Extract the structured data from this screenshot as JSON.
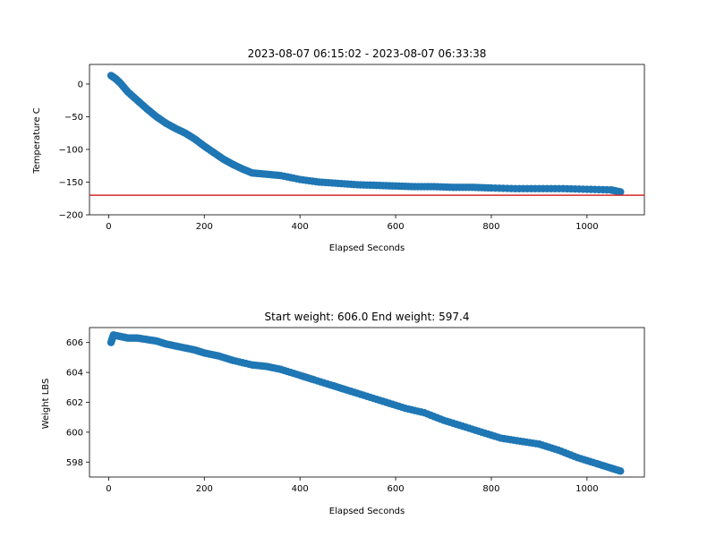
{
  "chart_data": [
    {
      "type": "scatter",
      "title": "2023-08-07 06:15:02 - 2023-08-07 06:33:38",
      "xlabel": "Elapsed Seconds",
      "ylabel": "Temperature C",
      "xlim": [
        -40,
        1120
      ],
      "ylim": [
        -200,
        30
      ],
      "xticks": [
        0,
        200,
        400,
        600,
        800,
        1000
      ],
      "yticks": [
        -200,
        -150,
        -100,
        -50,
        0
      ],
      "ytick_labels": [
        "−200",
        "−150",
        "−100",
        "−50",
        "0"
      ],
      "grid": false,
      "marker_color": "#1f77b4",
      "reference_line": {
        "y": -170,
        "color": "#d62728"
      },
      "series": [
        {
          "x": [
            5,
            15,
            25,
            40,
            60,
            80,
            100,
            120,
            140,
            160,
            180,
            200,
            220,
            240,
            260,
            280,
            300,
            330,
            360,
            400,
            440,
            480,
            520,
            560,
            600,
            640,
            680,
            720,
            760,
            800,
            850,
            900,
            950,
            1000,
            1050,
            1070
          ],
          "y": [
            13,
            8,
            1,
            -12,
            -25,
            -38,
            -50,
            -60,
            -68,
            -75,
            -84,
            -95,
            -105,
            -115,
            -123,
            -130,
            -136,
            -138,
            -140,
            -146,
            -150,
            -152,
            -154,
            -155,
            -156,
            -157,
            -157,
            -158,
            -158,
            -159,
            -160,
            -160,
            -160,
            -161,
            -162,
            -165
          ]
        }
      ]
    },
    {
      "type": "scatter",
      "title": "Start weight: 606.0 End weight: 597.4",
      "xlabel": "Elapsed Seconds",
      "ylabel": "Weight LBS",
      "xlim": [
        -40,
        1120
      ],
      "ylim": [
        597,
        607
      ],
      "xticks": [
        0,
        200,
        400,
        600,
        800,
        1000
      ],
      "yticks": [
        598,
        600,
        602,
        604,
        606
      ],
      "grid": false,
      "marker_color": "#1f77b4",
      "series": [
        {
          "x": [
            5,
            10,
            25,
            40,
            60,
            80,
            100,
            120,
            150,
            180,
            200,
            230,
            260,
            300,
            330,
            360,
            400,
            430,
            470,
            500,
            540,
            580,
            620,
            660,
            700,
            740,
            780,
            820,
            860,
            900,
            940,
            980,
            1020,
            1050,
            1070
          ],
          "y": [
            606.0,
            606.5,
            606.4,
            606.3,
            606.3,
            606.2,
            606.1,
            605.9,
            605.7,
            605.5,
            605.3,
            605.1,
            604.8,
            604.5,
            604.4,
            604.2,
            603.8,
            603.5,
            603.1,
            602.8,
            602.4,
            602.0,
            601.6,
            601.3,
            600.8,
            600.4,
            600.0,
            599.6,
            599.4,
            599.2,
            598.8,
            598.3,
            597.9,
            597.6,
            597.4
          ]
        }
      ]
    }
  ]
}
